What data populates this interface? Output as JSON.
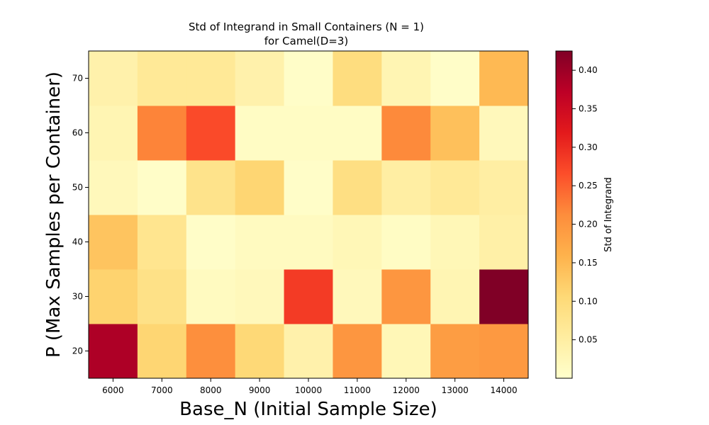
{
  "chart_data": {
    "type": "heatmap",
    "title": "Std of Integrand in Small Containers (N = 1)",
    "subtitle": "for Camel(D=3)",
    "xlabel": "Base_N (Initial Sample Size)",
    "ylabel": "P (Max Samples per Container)",
    "colorbar_label": "Std of Integrand",
    "x_categories": [
      "6000",
      "7000",
      "8000",
      "9000",
      "10000",
      "11000",
      "12000",
      "13000",
      "14000"
    ],
    "y_categories": [
      "20",
      "30",
      "40",
      "50",
      "60",
      "70"
    ],
    "values": [
      [
        0.385,
        0.11,
        0.21,
        0.105,
        0.04,
        0.2,
        0.025,
        0.19,
        0.195
      ],
      [
        0.115,
        0.085,
        0.015,
        0.02,
        0.285,
        0.02,
        0.2,
        0.03,
        0.425
      ],
      [
        0.135,
        0.075,
        0.005,
        0.015,
        0.015,
        0.025,
        0.01,
        0.025,
        0.045
      ],
      [
        0.02,
        0.005,
        0.08,
        0.11,
        0.005,
        0.09,
        0.05,
        0.065,
        0.05
      ],
      [
        0.03,
        0.22,
        0.27,
        0.01,
        0.01,
        0.01,
        0.215,
        0.14,
        0.02
      ],
      [
        0.04,
        0.065,
        0.065,
        0.04,
        0.005,
        0.095,
        0.03,
        0.005,
        0.15
      ]
    ],
    "colorbar_ticks": [
      0.05,
      0.1,
      0.15,
      0.2,
      0.25,
      0.3,
      0.35,
      0.4
    ],
    "colorbar_tick_labels": [
      "0.05",
      "0.10",
      "0.15",
      "0.20",
      "0.25",
      "0.30",
      "0.35",
      "0.40"
    ],
    "vmin": 0.0,
    "vmax": 0.425,
    "colormap": "YlOrRd",
    "grid": false
  }
}
